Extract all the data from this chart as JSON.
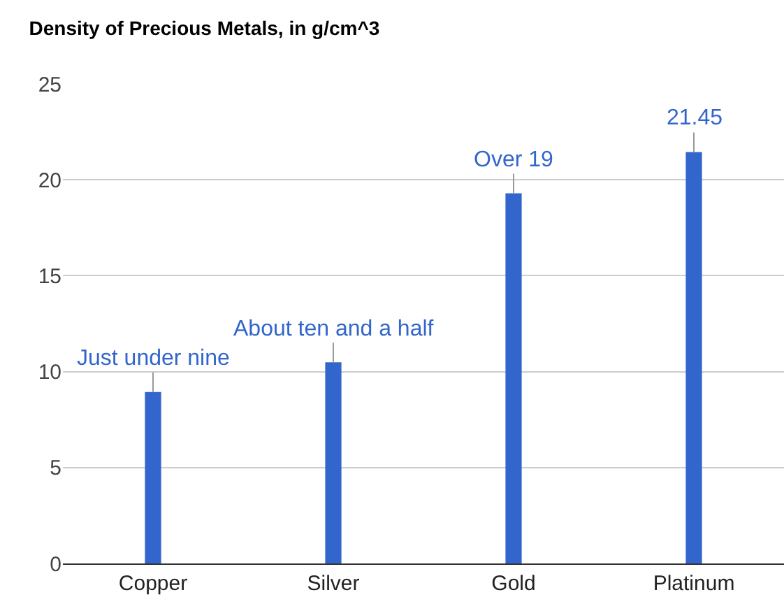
{
  "chart_data": {
    "type": "bar",
    "title": "Density of Precious Metals, in g/cm^3",
    "categories": [
      "Copper",
      "Silver",
      "Gold",
      "Platinum"
    ],
    "values": [
      8.94,
      10.49,
      19.3,
      21.45
    ],
    "color": "#3366cc",
    "ylim": [
      0,
      25
    ],
    "yticks": [
      0,
      5,
      10,
      15,
      20,
      25
    ],
    "grid": "y",
    "annotations": [
      {
        "text": "Just under nine",
        "x": "Copper",
        "y": 8.94
      },
      {
        "text": "About ten and a half",
        "x": "Silver",
        "y": 10.49
      },
      {
        "text": "Over 19",
        "x": "Gold",
        "y": 19.3
      },
      {
        "text": "21.45",
        "x": "Platinum",
        "y": 21.45
      }
    ]
  }
}
